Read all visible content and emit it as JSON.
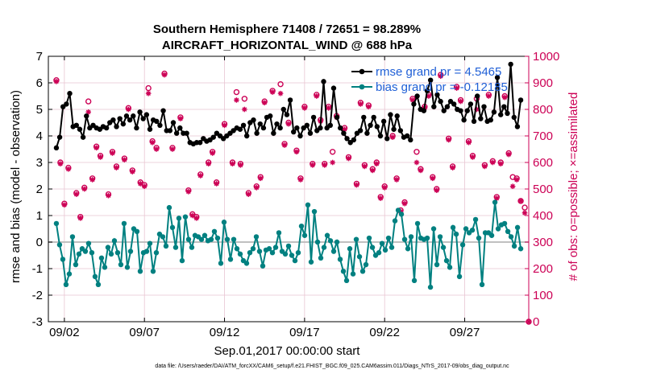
{
  "chart_data": {
    "type": "line",
    "title_line1": "Southern Hemisphere 71408 / 72651 = 98.289%",
    "title_line2": "AIRCRAFT_HORIZONTAL_WIND @ 688 hPa",
    "xlabel": "Sep.01,2017 00:00:00 start",
    "ylabel_left": "rmse and bias (model - observation)",
    "ylabel_right": "# of obs: o=possible; ×=assimilated",
    "footnote": "data file: /Users/raeder/DAI/ATM_forcXX/CAM6_setup/f.e21.FHIST_BGC.f09_025.CAM6assim.011/Diags_NTrS_2017-09/obs_diag_output.nc",
    "x_unit": "days since Sep 01 2017",
    "xlim": [
      0.5,
      30.5
    ],
    "ylim_left": [
      -3,
      7
    ],
    "ylim_right": [
      0,
      1000
    ],
    "x_ticks": [
      {
        "value": 1.5,
        "label": "09/02"
      },
      {
        "value": 6.5,
        "label": "09/07"
      },
      {
        "value": 11.5,
        "label": "09/12"
      },
      {
        "value": 16.5,
        "label": "09/17"
      },
      {
        "value": 21.5,
        "label": "09/22"
      },
      {
        "value": 26.5,
        "label": "09/27"
      }
    ],
    "y_ticks_left": [
      "-3",
      "-2",
      "-1",
      "0",
      "1",
      "2",
      "3",
      "4",
      "5",
      "6",
      "7"
    ],
    "y_ticks_right": [
      "0",
      "100",
      "200",
      "300",
      "400",
      "500",
      "600",
      "700",
      "800",
      "900",
      "1000"
    ],
    "grid": true,
    "zero_line": 0,
    "legend_location": "top-right",
    "colors": {
      "rmse": "#000000",
      "bias": "#008080",
      "obs": "#cc0055",
      "axis_right": "#cc0055",
      "grid": "#e8c5d2",
      "legend_text": "#1f5fd6",
      "zero_line": "#c0c0c0"
    },
    "series": [
      {
        "name": "rmse grand pr = 4.5465",
        "values": [
          3.55,
          3.95,
          5.1,
          5.2,
          5.6,
          4.35,
          4.4,
          4.25,
          3.95,
          4.75,
          4.3,
          4.4,
          4.3,
          4.25,
          4.35,
          4.3,
          4.5,
          4.6,
          4.35,
          4.65,
          4.45,
          4.75,
          4.6,
          4.75,
          4.3,
          4.9,
          4.65,
          4.8,
          4.25,
          4.6,
          4.55,
          4.4,
          4.95,
          4.2,
          4.2,
          4.5,
          4.1,
          4.3,
          4.1,
          4.1,
          3.75,
          3.7,
          3.75,
          3.75,
          3.9,
          3.8,
          3.85,
          3.95,
          4.1,
          4.0,
          3.9,
          4.0,
          4.1,
          4.2,
          4.3,
          4.25,
          4.4,
          4.0,
          4.5,
          4.6,
          4.1,
          4.45,
          4.3,
          4.7,
          4.75,
          4.1,
          4.45,
          4.3,
          5.0,
          4.8,
          5.35,
          4.15,
          4.3,
          4.0,
          4.3,
          4.4,
          4.1,
          4.7,
          4.2,
          4.3,
          6.05,
          4.3,
          4.4,
          5.8,
          4.7,
          4.3,
          4.1,
          3.9,
          3.75,
          3.85,
          4.1,
          4.2,
          4.7,
          4.1,
          4.4,
          4.7,
          4.35,
          4.0,
          4.55,
          3.9,
          4.8,
          4.25,
          4.75,
          4.2,
          3.95,
          4.0,
          3.85,
          5.2,
          5.5,
          5.0,
          4.95,
          5.7,
          6.1,
          5.1,
          5.55,
          5.3,
          4.95,
          5.1,
          5.3,
          5.2,
          5.0,
          4.95,
          4.6,
          4.95,
          5.2,
          4.55,
          5.5,
          4.65,
          5.1,
          4.55,
          4.6,
          4.9,
          6.2,
          4.8,
          5.1,
          4.85,
          6.7,
          4.7,
          4.35,
          5.35
        ]
      },
      {
        "name": "bias grand pr = -0.12185",
        "values": [
          0.7,
          -0.1,
          -0.65,
          -1.6,
          -1.2,
          0.2,
          -0.85,
          -0.45,
          -0.25,
          -0.35,
          -0.05,
          -0.4,
          -1.3,
          -1.6,
          -0.6,
          -0.95,
          -0.2,
          -0.45,
          0.05,
          -0.4,
          -0.85,
          0.7,
          -0.95,
          -0.35,
          0.5,
          0.4,
          -1.1,
          -0.4,
          -0.35,
          -0.05,
          -1.1,
          -0.4,
          0.3,
          0.2,
          -0.15,
          1.3,
          0.55,
          -0.2,
          0.9,
          -0.7,
          0.95,
          0.1,
          -0.2,
          0.25,
          0.2,
          0.1,
          0.25,
          0.05,
          0.1,
          0.4,
          0.15,
          -0.8,
          0.75,
          0.1,
          -0.65,
          0.1,
          -0.25,
          -0.45,
          -0.7,
          -0.8,
          -0.4,
          -0.25,
          0.2,
          -0.35,
          -0.9,
          -0.3,
          -0.25,
          -0.4,
          -0.2,
          0.35,
          -0.35,
          -0.45,
          -0.15,
          -0.5,
          -0.7,
          -0.4,
          0.6,
          0.25,
          1.4,
          -0.75,
          1.15,
          0.0,
          -0.6,
          -0.2,
          0.25,
          0.05,
          -0.35,
          0.0,
          -0.65,
          -1.1,
          -1.45,
          -0.25,
          -1.2,
          0.1,
          -0.55,
          -1.1,
          -0.85,
          0.15,
          -0.2,
          -0.5,
          -0.4,
          -0.05,
          -0.3,
          0.15,
          -0.2,
          0.8,
          1.2,
          1.05,
          0.1,
          -0.25,
          0.2,
          -1.45,
          0.7,
          0.15,
          0.1,
          0.15,
          -1.7,
          0.5,
          -0.85,
          0.2,
          -0.2,
          -0.7,
          -0.95,
          0.55,
          0.3,
          -1.3,
          -0.1,
          0.5,
          0.35,
          0.45,
          0.85,
          0.15,
          -1.6,
          0.35,
          0.35,
          0.25,
          1.5,
          0.5,
          0.65,
          0.7,
          0.4,
          0.2,
          -0.15,
          0.55,
          -0.25
        ]
      }
    ],
    "obs_possible": [
      {
        "x": 1.0,
        "y": 910
      },
      {
        "x": 1.25,
        "y": 600
      },
      {
        "x": 1.5,
        "y": 445
      },
      {
        "x": 1.75,
        "y": 580
      },
      {
        "x": 2.25,
        "y": 485
      },
      {
        "x": 2.5,
        "y": 395
      },
      {
        "x": 2.75,
        "y": 505
      },
      {
        "x": 3.0,
        "y": 830
      },
      {
        "x": 3.25,
        "y": 540
      },
      {
        "x": 3.5,
        "y": 660
      },
      {
        "x": 3.75,
        "y": 625
      },
      {
        "x": 4.25,
        "y": 480
      },
      {
        "x": 4.5,
        "y": 640
      },
      {
        "x": 4.75,
        "y": 585
      },
      {
        "x": 5.25,
        "y": 615
      },
      {
        "x": 5.5,
        "y": 805
      },
      {
        "x": 5.75,
        "y": 570
      },
      {
        "x": 6.25,
        "y": 525
      },
      {
        "x": 6.5,
        "y": 515
      },
      {
        "x": 6.75,
        "y": 880
      },
      {
        "x": 7.0,
        "y": 680
      },
      {
        "x": 7.25,
        "y": 655
      },
      {
        "x": 7.75,
        "y": 935
      },
      {
        "x": 8.25,
        "y": 655
      },
      {
        "x": 8.75,
        "y": 770
      },
      {
        "x": 9.25,
        "y": 495
      },
      {
        "x": 9.5,
        "y": 405
      },
      {
        "x": 9.75,
        "y": 395
      },
      {
        "x": 10.0,
        "y": 555
      },
      {
        "x": 10.5,
        "y": 600
      },
      {
        "x": 10.75,
        "y": 640
      },
      {
        "x": 11.0,
        "y": 525
      },
      {
        "x": 11.5,
        "y": 745
      },
      {
        "x": 12.0,
        "y": 600
      },
      {
        "x": 12.25,
        "y": 865
      },
      {
        "x": 12.5,
        "y": 595
      },
      {
        "x": 12.75,
        "y": 840
      },
      {
        "x": 13.0,
        "y": 485
      },
      {
        "x": 13.5,
        "y": 510
      },
      {
        "x": 13.75,
        "y": 545
      },
      {
        "x": 14.0,
        "y": 830
      },
      {
        "x": 14.5,
        "y": 870
      },
      {
        "x": 15.0,
        "y": 895
      },
      {
        "x": 15.25,
        "y": 670
      },
      {
        "x": 15.5,
        "y": 750
      },
      {
        "x": 16.0,
        "y": 645
      },
      {
        "x": 16.25,
        "y": 540
      },
      {
        "x": 16.5,
        "y": 810
      },
      {
        "x": 17.0,
        "y": 595
      },
      {
        "x": 17.25,
        "y": 855
      },
      {
        "x": 17.5,
        "y": 760
      },
      {
        "x": 17.75,
        "y": 595
      },
      {
        "x": 18.0,
        "y": 810
      },
      {
        "x": 18.25,
        "y": 640
      },
      {
        "x": 18.5,
        "y": 775
      },
      {
        "x": 19.0,
        "y": 730
      },
      {
        "x": 19.25,
        "y": 620
      },
      {
        "x": 19.75,
        "y": 520
      },
      {
        "x": 20.0,
        "y": 825
      },
      {
        "x": 20.25,
        "y": 590
      },
      {
        "x": 20.5,
        "y": 815
      },
      {
        "x": 20.75,
        "y": 575
      },
      {
        "x": 21.0,
        "y": 600
      },
      {
        "x": 21.25,
        "y": 470
      },
      {
        "x": 21.5,
        "y": 510
      },
      {
        "x": 22.0,
        "y": 700
      },
      {
        "x": 22.25,
        "y": 540
      },
      {
        "x": 22.5,
        "y": 420
      },
      {
        "x": 22.75,
        "y": 450
      },
      {
        "x": 23.25,
        "y": 840
      },
      {
        "x": 23.5,
        "y": 640
      },
      {
        "x": 23.75,
        "y": 575
      },
      {
        "x": 24.0,
        "y": 810
      },
      {
        "x": 24.25,
        "y": 855
      },
      {
        "x": 24.5,
        "y": 545
      },
      {
        "x": 24.75,
        "y": 500
      },
      {
        "x": 25.0,
        "y": 930
      },
      {
        "x": 25.5,
        "y": 690
      },
      {
        "x": 25.75,
        "y": 585
      },
      {
        "x": 26.0,
        "y": 885
      },
      {
        "x": 26.25,
        "y": 835
      },
      {
        "x": 26.75,
        "y": 680
      },
      {
        "x": 27.0,
        "y": 625
      },
      {
        "x": 27.25,
        "y": 840
      },
      {
        "x": 27.75,
        "y": 590
      },
      {
        "x": 28.0,
        "y": 855
      },
      {
        "x": 28.25,
        "y": 605
      },
      {
        "x": 28.5,
        "y": 470
      },
      {
        "x": 28.75,
        "y": 600
      },
      {
        "x": 29.0,
        "y": 850
      },
      {
        "x": 29.25,
        "y": 635
      },
      {
        "x": 29.5,
        "y": 545
      },
      {
        "x": 29.75,
        "y": 540
      },
      {
        "x": 30.0,
        "y": 455
      },
      {
        "x": 30.25,
        "y": 430
      },
      {
        "x": 30.5,
        "y": 0
      }
    ],
    "obs_assimilated": [
      {
        "x": 1.0,
        "y": 905
      },
      {
        "x": 1.25,
        "y": 595
      },
      {
        "x": 1.5,
        "y": 440
      },
      {
        "x": 1.75,
        "y": 575
      },
      {
        "x": 2.25,
        "y": 480
      },
      {
        "x": 2.5,
        "y": 390
      },
      {
        "x": 2.75,
        "y": 500
      },
      {
        "x": 3.0,
        "y": 790
      },
      {
        "x": 3.25,
        "y": 535
      },
      {
        "x": 3.5,
        "y": 655
      },
      {
        "x": 3.75,
        "y": 620
      },
      {
        "x": 4.25,
        "y": 475
      },
      {
        "x": 4.5,
        "y": 635
      },
      {
        "x": 4.75,
        "y": 580
      },
      {
        "x": 5.25,
        "y": 610
      },
      {
        "x": 5.5,
        "y": 800
      },
      {
        "x": 5.75,
        "y": 565
      },
      {
        "x": 6.25,
        "y": 520
      },
      {
        "x": 6.5,
        "y": 510
      },
      {
        "x": 6.75,
        "y": 860
      },
      {
        "x": 7.0,
        "y": 675
      },
      {
        "x": 7.25,
        "y": 650
      },
      {
        "x": 7.75,
        "y": 930
      },
      {
        "x": 8.25,
        "y": 650
      },
      {
        "x": 8.75,
        "y": 765
      },
      {
        "x": 9.25,
        "y": 490
      },
      {
        "x": 9.5,
        "y": 400
      },
      {
        "x": 9.75,
        "y": 390
      },
      {
        "x": 10.0,
        "y": 550
      },
      {
        "x": 10.5,
        "y": 595
      },
      {
        "x": 10.75,
        "y": 635
      },
      {
        "x": 11.0,
        "y": 520
      },
      {
        "x": 11.5,
        "y": 740
      },
      {
        "x": 12.0,
        "y": 595
      },
      {
        "x": 12.25,
        "y": 835
      },
      {
        "x": 12.5,
        "y": 590
      },
      {
        "x": 12.75,
        "y": 800
      },
      {
        "x": 13.0,
        "y": 480
      },
      {
        "x": 13.5,
        "y": 505
      },
      {
        "x": 13.75,
        "y": 540
      },
      {
        "x": 14.0,
        "y": 825
      },
      {
        "x": 14.5,
        "y": 865
      },
      {
        "x": 15.0,
        "y": 860
      },
      {
        "x": 15.25,
        "y": 665
      },
      {
        "x": 15.5,
        "y": 745
      },
      {
        "x": 16.0,
        "y": 640
      },
      {
        "x": 16.25,
        "y": 535
      },
      {
        "x": 16.5,
        "y": 805
      },
      {
        "x": 17.0,
        "y": 590
      },
      {
        "x": 17.25,
        "y": 850
      },
      {
        "x": 17.5,
        "y": 755
      },
      {
        "x": 17.75,
        "y": 590
      },
      {
        "x": 18.0,
        "y": 805
      },
      {
        "x": 18.25,
        "y": 600
      },
      {
        "x": 18.5,
        "y": 770
      },
      {
        "x": 19.0,
        "y": 725
      },
      {
        "x": 19.25,
        "y": 615
      },
      {
        "x": 19.75,
        "y": 515
      },
      {
        "x": 20.0,
        "y": 820
      },
      {
        "x": 20.25,
        "y": 585
      },
      {
        "x": 20.5,
        "y": 810
      },
      {
        "x": 20.75,
        "y": 570
      },
      {
        "x": 21.0,
        "y": 595
      },
      {
        "x": 21.25,
        "y": 465
      },
      {
        "x": 21.5,
        "y": 505
      },
      {
        "x": 22.0,
        "y": 695
      },
      {
        "x": 22.25,
        "y": 535
      },
      {
        "x": 22.5,
        "y": 415
      },
      {
        "x": 22.75,
        "y": 445
      },
      {
        "x": 23.25,
        "y": 835
      },
      {
        "x": 23.5,
        "y": 600
      },
      {
        "x": 23.75,
        "y": 570
      },
      {
        "x": 24.0,
        "y": 805
      },
      {
        "x": 24.25,
        "y": 850
      },
      {
        "x": 24.5,
        "y": 540
      },
      {
        "x": 24.75,
        "y": 495
      },
      {
        "x": 25.0,
        "y": 925
      },
      {
        "x": 25.5,
        "y": 685
      },
      {
        "x": 25.75,
        "y": 580
      },
      {
        "x": 26.0,
        "y": 880
      },
      {
        "x": 26.25,
        "y": 830
      },
      {
        "x": 26.75,
        "y": 675
      },
      {
        "x": 27.0,
        "y": 620
      },
      {
        "x": 27.25,
        "y": 800
      },
      {
        "x": 27.75,
        "y": 585
      },
      {
        "x": 28.0,
        "y": 850
      },
      {
        "x": 28.25,
        "y": 600
      },
      {
        "x": 28.5,
        "y": 465
      },
      {
        "x": 28.75,
        "y": 595
      },
      {
        "x": 29.0,
        "y": 845
      },
      {
        "x": 29.25,
        "y": 630
      },
      {
        "x": 29.5,
        "y": 510
      },
      {
        "x": 29.75,
        "y": 535
      },
      {
        "x": 30.0,
        "y": 455
      },
      {
        "x": 30.25,
        "y": 410
      },
      {
        "x": 30.5,
        "y": 0
      }
    ]
  }
}
